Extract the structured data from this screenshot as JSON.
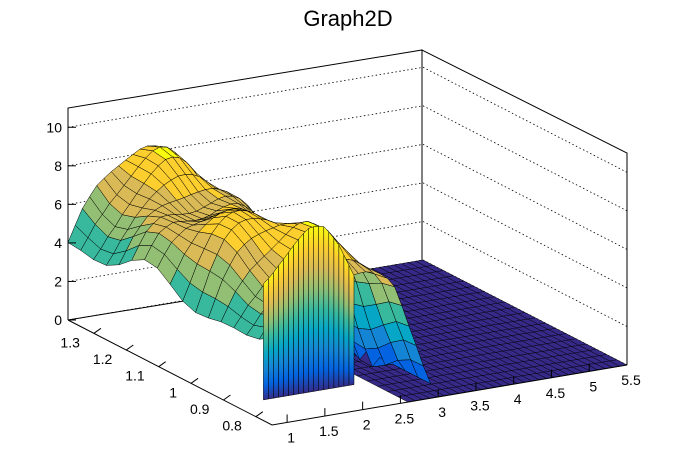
{
  "chart_data": {
    "type": "surface",
    "title": "Graph2D",
    "xlabel": "",
    "ylabel": "",
    "zlabel": "",
    "x_ticks": [
      "1",
      "1.5",
      "2",
      "2.5",
      "3",
      "3.5",
      "4",
      "4.5",
      "5",
      "5.5"
    ],
    "y_ticks": [
      "0.8",
      "0.9",
      "1",
      "1.1",
      "1.2",
      "1.3"
    ],
    "z_ticks": [
      "0",
      "2",
      "4",
      "6",
      "8",
      "10"
    ],
    "xlim": [
      0.8,
      5.5
    ],
    "ylim": [
      0.75,
      1.38
    ],
    "zlim": [
      0,
      11
    ],
    "colormap": [
      "#352a87",
      "#0363e1",
      "#1485d4",
      "#06a7c6",
      "#38b99e",
      "#92bf73",
      "#d9ba56",
      "#fcce2e",
      "#f9fb0e"
    ],
    "surface_profile": [
      {
        "x": 0.8,
        "z": 4.3
      },
      {
        "x": 1.0,
        "z": 5.8
      },
      {
        "x": 1.2,
        "z": 6.8
      },
      {
        "x": 1.4,
        "z": 7.3
      },
      {
        "x": 1.6,
        "z": 7.6
      },
      {
        "x": 1.8,
        "z": 7.8
      },
      {
        "x": 2.0,
        "z": 7.6
      },
      {
        "x": 2.2,
        "z": 6.8
      },
      {
        "x": 2.4,
        "z": 5.6
      },
      {
        "x": 2.6,
        "z": 3.2
      },
      {
        "x": 2.8,
        "z": 1.2
      },
      {
        "x": 3.0,
        "z": 0.3
      },
      {
        "x": 3.5,
        "z": 0.0
      },
      {
        "x": 4.0,
        "z": 0.0
      },
      {
        "x": 4.5,
        "z": 0.0
      },
      {
        "x": 5.0,
        "z": 0.0
      },
      {
        "x": 5.5,
        "z": 0.0
      }
    ],
    "grid": true,
    "grid_planes": "back walls, dotted"
  }
}
